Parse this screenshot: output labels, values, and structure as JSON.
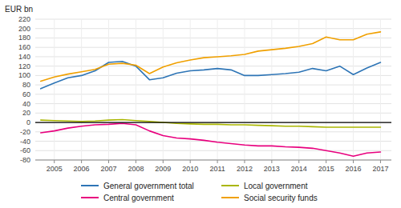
{
  "chart_data": {
    "type": "line",
    "y_label": "EUR bn",
    "x": [
      2004.5,
      2005.0,
      2005.5,
      2006.0,
      2006.5,
      2007.0,
      2007.5,
      2008.0,
      2008.5,
      2009.0,
      2009.5,
      2010.0,
      2010.5,
      2011.0,
      2011.5,
      2012.0,
      2012.5,
      2013.0,
      2013.5,
      2014.0,
      2014.5,
      2015.0,
      2015.5,
      2016.0,
      2016.5,
      2017.0
    ],
    "series": [
      {
        "name": "General government total",
        "color": "#2e75b6",
        "values": [
          72,
          84,
          95,
          100,
          110,
          128,
          130,
          120,
          91,
          95,
          105,
          110,
          112,
          115,
          112,
          100,
          100,
          102,
          104,
          107,
          115,
          110,
          120,
          102,
          116,
          128
        ]
      },
      {
        "name": "Central government",
        "color": "#e8007e",
        "values": [
          -22,
          -18,
          -12,
          -8,
          -5,
          -4,
          -2,
          -5,
          -18,
          -28,
          -33,
          -35,
          -38,
          -42,
          -45,
          -48,
          -50,
          -50,
          -52,
          -53,
          -55,
          -60,
          -65,
          -72,
          -65,
          -63
        ]
      },
      {
        "name": "Local government",
        "color": "#aab600",
        "values": [
          5,
          4,
          3,
          2,
          3,
          5,
          6,
          4,
          2,
          0,
          -2,
          -3,
          -4,
          -4,
          -5,
          -5,
          -6,
          -7,
          -8,
          -8,
          -9,
          -10,
          -10,
          -10,
          -10,
          -10
        ]
      },
      {
        "name": "Social security funds",
        "color": "#f0a000",
        "values": [
          88,
          97,
          103,
          108,
          113,
          124,
          126,
          122,
          104,
          118,
          127,
          133,
          138,
          140,
          142,
          145,
          152,
          155,
          158,
          162,
          168,
          182,
          176,
          176,
          188,
          193
        ]
      }
    ],
    "xlim": [
      2004.3,
      2017.4
    ],
    "xticks": [
      2005,
      2006,
      2007,
      2008,
      2009,
      2010,
      2011,
      2012,
      2013,
      2014,
      2015,
      2016,
      2017
    ],
    "ylim": [
      -80,
      220
    ],
    "yticks": [
      -80,
      -60,
      -40,
      -20,
      0,
      20,
      40,
      60,
      80,
      100,
      120,
      140,
      160,
      180,
      200,
      220
    ],
    "grid": true,
    "legend": "bottom"
  }
}
